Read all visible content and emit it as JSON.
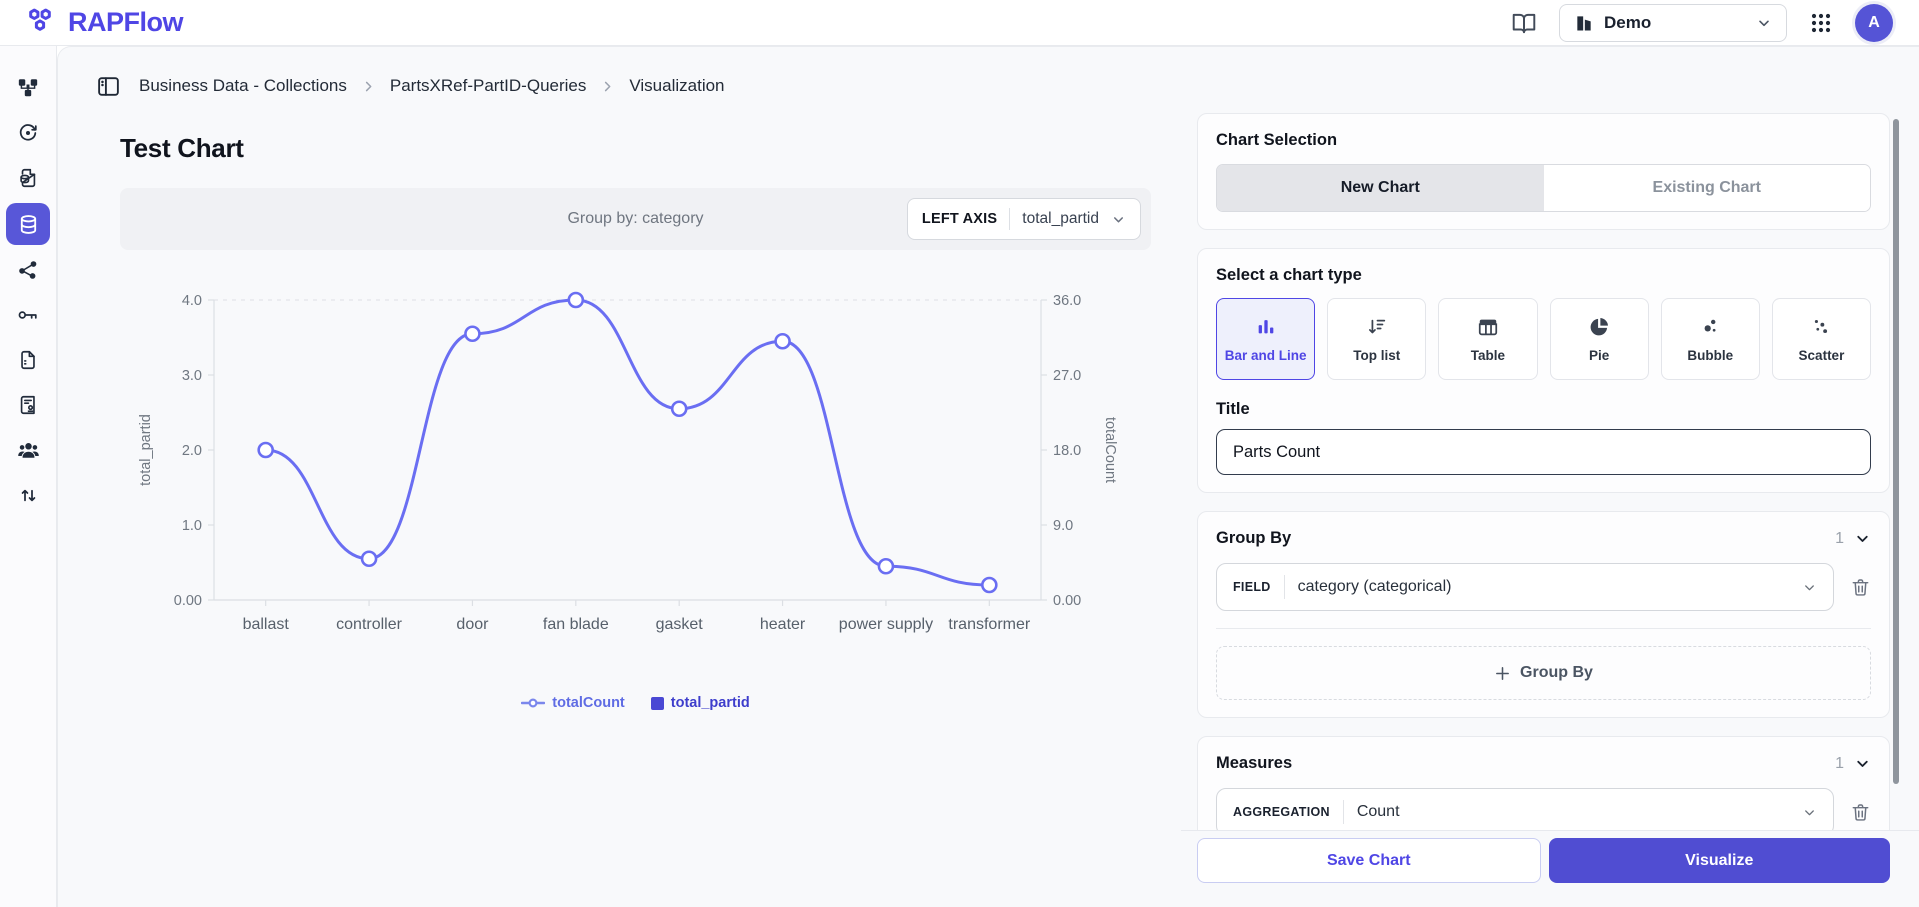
{
  "colors": {
    "primary": "#4f46e5",
    "line": "#6a6ef2",
    "sidebar_active_bg": "#5857d8",
    "legend_totalCount": "#5f6ce4",
    "legend_total_partid": "#3e3ecc"
  },
  "header": {
    "app_name": "RAPFlow",
    "workspace_label": "Demo",
    "avatar_initial": "A"
  },
  "sidebar": {
    "items": [
      {
        "name": "workflow"
      },
      {
        "name": "sync"
      },
      {
        "name": "database-file"
      },
      {
        "name": "database",
        "active": true
      },
      {
        "name": "share"
      },
      {
        "name": "key"
      },
      {
        "name": "file"
      },
      {
        "name": "document-stamp"
      },
      {
        "name": "users"
      },
      {
        "name": "sort-arrows"
      }
    ]
  },
  "breadcrumb": {
    "items": [
      "Business Data - Collections",
      "PartsXRef-PartID-Queries",
      "Visualization"
    ]
  },
  "main": {
    "page_title": "Test Chart",
    "group_by_label": "Group by: category",
    "axis_selector": {
      "label": "LEFT AXIS",
      "value": "total_partid"
    },
    "legend": [
      {
        "label": "totalCount"
      },
      {
        "label": "total_partid"
      }
    ]
  },
  "chart_data": {
    "type": "line",
    "title": "Test Chart",
    "categories": [
      "ballast",
      "controller",
      "door",
      "fan blade",
      "gasket",
      "heater",
      "power supply",
      "transformer"
    ],
    "series": [
      {
        "name": "totalCount",
        "axis": "right",
        "values": [
          18,
          5,
          32,
          36,
          23,
          31,
          4,
          2
        ]
      },
      {
        "name": "total_partid",
        "axis": "left",
        "values": [
          2.0,
          0.55,
          3.55,
          4.0,
          2.55,
          3.45,
          0.45,
          0.2
        ]
      }
    ],
    "left_axis": {
      "label": "total_partid",
      "range": [
        0,
        4
      ],
      "ticks": [
        "4.0",
        "3.0",
        "2.0",
        "1.0",
        "0.00"
      ]
    },
    "right_axis": {
      "label": "totalCount",
      "range": [
        0,
        36
      ],
      "ticks": [
        "36.0",
        "27.0",
        "18.0",
        "9.0",
        "0.00"
      ]
    },
    "grid": "dashed line at top tick only",
    "legend_position": "bottom",
    "line_color": "#6a6ef2"
  },
  "panel": {
    "chart_selection": {
      "title": "Chart Selection",
      "tabs": [
        {
          "label": "New Chart",
          "active": true
        },
        {
          "label": "Existing Chart",
          "active": false
        }
      ]
    },
    "chart_type": {
      "title": "Select a chart type",
      "options": [
        {
          "label": "Bar and Line",
          "icon": "bar-chart-icon",
          "selected": true
        },
        {
          "label": "Top list",
          "icon": "top-list-icon",
          "selected": false
        },
        {
          "label": "Table",
          "icon": "table-icon",
          "selected": false
        },
        {
          "label": "Pie",
          "icon": "pie-icon",
          "selected": false
        },
        {
          "label": "Bubble",
          "icon": "bubble-icon",
          "selected": false
        },
        {
          "label": "Scatter",
          "icon": "scatter-icon",
          "selected": false
        }
      ]
    },
    "title_field": {
      "label": "Title",
      "value": "Parts Count"
    },
    "group_by": {
      "title": "Group By",
      "count": "1",
      "field_tag": "FIELD",
      "field_value": "category (categorical)",
      "add_label": "Group By"
    },
    "measures": {
      "title": "Measures",
      "count": "1",
      "field_tag": "AGGREGATION",
      "field_value": "Count"
    },
    "actions": {
      "save_label": "Save Chart",
      "visualize_label": "Visualize"
    }
  }
}
